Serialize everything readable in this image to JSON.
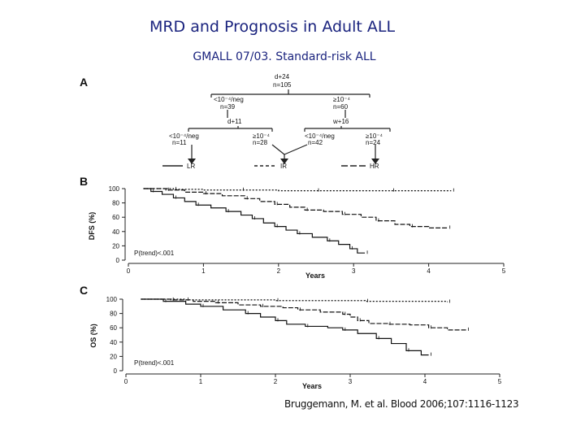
{
  "slide": {
    "title": "MRD and Prognosis in Adult ALL",
    "subtitle": "GMALL 07/03. Standard-risk ALL",
    "citation": "Bruggemann, M. et al. Blood 2006;107:1116-1123"
  },
  "panel_a": {
    "label": "A",
    "root": {
      "line1": "d+24",
      "line2": "n=105"
    },
    "level1": [
      {
        "line1": "<10⁻⁴/neg",
        "line2": "n=39"
      },
      {
        "line1": "≥10⁻⁴",
        "line2": "n=60"
      }
    ],
    "level2": [
      {
        "line1": "d+11"
      },
      {
        "line1": "w+16"
      }
    ],
    "leaves": [
      {
        "line1": "<10⁻⁴/neg",
        "line2": "n=11"
      },
      {
        "line1": "≥10⁻⁴",
        "line2": "n=28"
      },
      {
        "line1": "<10⁻⁴/neg",
        "line2": "n=42"
      },
      {
        "line1": "≥10⁻⁴",
        "line2": "n=24"
      }
    ],
    "risk_groups": [
      "LR",
      "IR",
      "HR"
    ]
  },
  "chart_data": [
    {
      "type": "line",
      "panel_label": "B",
      "ylabel": "DFS (%)",
      "xlabel": "Years",
      "xlim": [
        0,
        5
      ],
      "ylim": [
        0,
        100
      ],
      "xticks": [
        "0",
        "1",
        "2",
        "3",
        "4",
        "5"
      ],
      "yticks": [
        "0",
        "20",
        "40",
        "60",
        "80",
        "100"
      ],
      "annotation": "P(trend)<.001",
      "series": [
        {
          "style": "solid",
          "points": [
            [
              0.2,
              100
            ],
            [
              0.3,
              96
            ],
            [
              0.45,
              92
            ],
            [
              0.6,
              87
            ],
            [
              0.75,
              82
            ],
            [
              0.9,
              77
            ],
            [
              1.1,
              73
            ],
            [
              1.3,
              68
            ],
            [
              1.5,
              63
            ],
            [
              1.65,
              58
            ],
            [
              1.8,
              52
            ],
            [
              1.95,
              47
            ],
            [
              2.1,
              42
            ],
            [
              2.25,
              37
            ],
            [
              2.45,
              32
            ],
            [
              2.65,
              27
            ],
            [
              2.8,
              22
            ],
            [
              2.95,
              16
            ],
            [
              3.05,
              10
            ],
            [
              3.15,
              10
            ]
          ]
        },
        {
          "style": "dashed",
          "points": [
            [
              0.2,
              100
            ],
            [
              0.5,
              98
            ],
            [
              0.75,
              95
            ],
            [
              1.0,
              93
            ],
            [
              1.25,
              90
            ],
            [
              1.55,
              86
            ],
            [
              1.75,
              82
            ],
            [
              1.95,
              78
            ],
            [
              2.15,
              74
            ],
            [
              2.35,
              70
            ],
            [
              2.6,
              68
            ],
            [
              2.85,
              64
            ],
            [
              3.1,
              60
            ],
            [
              3.3,
              55
            ],
            [
              3.55,
              50
            ],
            [
              3.75,
              47
            ],
            [
              4.0,
              45
            ],
            [
              4.25,
              45
            ]
          ]
        },
        {
          "style": "dotted",
          "points": [
            [
              0.2,
              100
            ],
            [
              0.6,
              99
            ],
            [
              1.0,
              98
            ],
            [
              1.5,
              98
            ],
            [
              2.0,
              97
            ],
            [
              2.5,
              97
            ],
            [
              3.0,
              97
            ],
            [
              3.5,
              97
            ],
            [
              4.0,
              97
            ],
            [
              4.3,
              97
            ]
          ]
        }
      ]
    },
    {
      "type": "line",
      "panel_label": "C",
      "ylabel": "OS (%)",
      "xlabel": "Years",
      "xlim": [
        0,
        5
      ],
      "ylim": [
        0,
        100
      ],
      "xticks": [
        "0",
        "1",
        "2",
        "3",
        "4",
        "5"
      ],
      "yticks": [
        "0",
        "20",
        "40",
        "60",
        "80",
        "100"
      ],
      "annotation": "P(trend)<.001",
      "series": [
        {
          "style": "solid",
          "points": [
            [
              0.2,
              100
            ],
            [
              0.5,
              97
            ],
            [
              0.8,
              93
            ],
            [
              1.0,
              90
            ],
            [
              1.3,
              85
            ],
            [
              1.6,
              80
            ],
            [
              1.8,
              75
            ],
            [
              2.0,
              70
            ],
            [
              2.15,
              65
            ],
            [
              2.4,
              62
            ],
            [
              2.7,
              60
            ],
            [
              2.9,
              57
            ],
            [
              3.1,
              52
            ],
            [
              3.35,
              45
            ],
            [
              3.55,
              38
            ],
            [
              3.75,
              28
            ],
            [
              3.95,
              22
            ],
            [
              4.05,
              22
            ]
          ]
        },
        {
          "style": "dashed",
          "points": [
            [
              0.2,
              100
            ],
            [
              0.6,
              99
            ],
            [
              0.9,
              97
            ],
            [
              1.2,
              95
            ],
            [
              1.5,
              92
            ],
            [
              1.8,
              90
            ],
            [
              2.1,
              88
            ],
            [
              2.3,
              85
            ],
            [
              2.6,
              82
            ],
            [
              2.9,
              79
            ],
            [
              3.0,
              75
            ],
            [
              3.1,
              70
            ],
            [
              3.25,
              66
            ],
            [
              3.5,
              65
            ],
            [
              3.8,
              64
            ],
            [
              4.05,
              60
            ],
            [
              4.3,
              57
            ],
            [
              4.55,
              57
            ]
          ]
        },
        {
          "style": "dotted",
          "points": [
            [
              0.2,
              100
            ],
            [
              0.8,
              99
            ],
            [
              1.4,
              99
            ],
            [
              2.0,
              98
            ],
            [
              2.6,
              98
            ],
            [
              3.2,
              97
            ],
            [
              3.8,
              97
            ],
            [
              4.3,
              96
            ]
          ]
        }
      ]
    }
  ]
}
